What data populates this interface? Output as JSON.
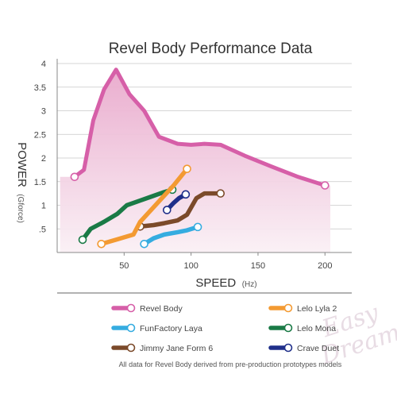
{
  "chart_data": {
    "type": "line",
    "title": "Revel Body Performance Data",
    "xlabel": "SPEED",
    "xlabel_unit": "(Hz)",
    "ylabel": "POWER",
    "ylabel_unit": "(Gforce)",
    "xlim": [
      0,
      220
    ],
    "ylim": [
      0,
      4
    ],
    "xticks": [
      "50",
      "100",
      "150",
      "200"
    ],
    "xtick_values": [
      50,
      100,
      150,
      200
    ],
    "yticks": [
      ".5",
      "1",
      "1.5",
      "2",
      "2.5",
      "3",
      "3.5",
      "4"
    ],
    "ytick_values": [
      0.5,
      1,
      1.5,
      2,
      2.5,
      3,
      3.5,
      4
    ],
    "grid": "horizontal",
    "legend_position": "bottom",
    "series": [
      {
        "name": "Revel Body",
        "color": "#d65fa8",
        "fill": true,
        "x": [
          13,
          20,
          27,
          35,
          44,
          54,
          65,
          76,
          90,
          100,
          110,
          122,
          140,
          160,
          180,
          200
        ],
        "y": [
          1.6,
          1.75,
          2.8,
          3.45,
          3.87,
          3.35,
          3.0,
          2.45,
          2.3,
          2.28,
          2.3,
          2.28,
          2.05,
          1.82,
          1.6,
          1.42
        ]
      },
      {
        "name": "Lelo Lyla 2",
        "color": "#f39a32",
        "fill": false,
        "x": [
          33,
          45,
          57,
          62,
          75,
          87,
          97
        ],
        "y": [
          0.18,
          0.28,
          0.38,
          0.65,
          1.05,
          1.42,
          1.77
        ]
      },
      {
        "name": "FunFactory Laya",
        "color": "#35ace0",
        "fill": false,
        "x": [
          65,
          72,
          80,
          90,
          97,
          105
        ],
        "y": [
          0.18,
          0.3,
          0.38,
          0.43,
          0.47,
          0.54
        ]
      },
      {
        "name": "Lelo Mona",
        "color": "#1a7a46",
        "fill": false,
        "x": [
          19,
          25,
          35,
          45,
          52,
          62,
          72,
          80,
          86
        ],
        "y": [
          0.27,
          0.5,
          0.65,
          0.82,
          1.0,
          1.1,
          1.2,
          1.28,
          1.33
        ]
      },
      {
        "name": "Jimmy Jane Form 6",
        "color": "#7b4a2a",
        "fill": false,
        "x": [
          62,
          72,
          80,
          90,
          97,
          104,
          110,
          122
        ],
        "y": [
          0.55,
          0.58,
          0.62,
          0.68,
          0.8,
          1.15,
          1.25,
          1.25
        ]
      },
      {
        "name": "Crave Duet",
        "color": "#1f2f8a",
        "fill": false,
        "x": [
          82,
          87,
          91,
          96
        ],
        "y": [
          0.9,
          1.05,
          1.15,
          1.23
        ]
      }
    ]
  },
  "footnote": "All data for Revel Body derived from pre-production prototypes models",
  "watermark": [
    "Easy",
    "Dreams"
  ],
  "colors": {
    "area_top": "#e9a9cc",
    "area_bottom": "#faf0f5",
    "axis": "#888888",
    "grid": "#c8c8c8"
  }
}
